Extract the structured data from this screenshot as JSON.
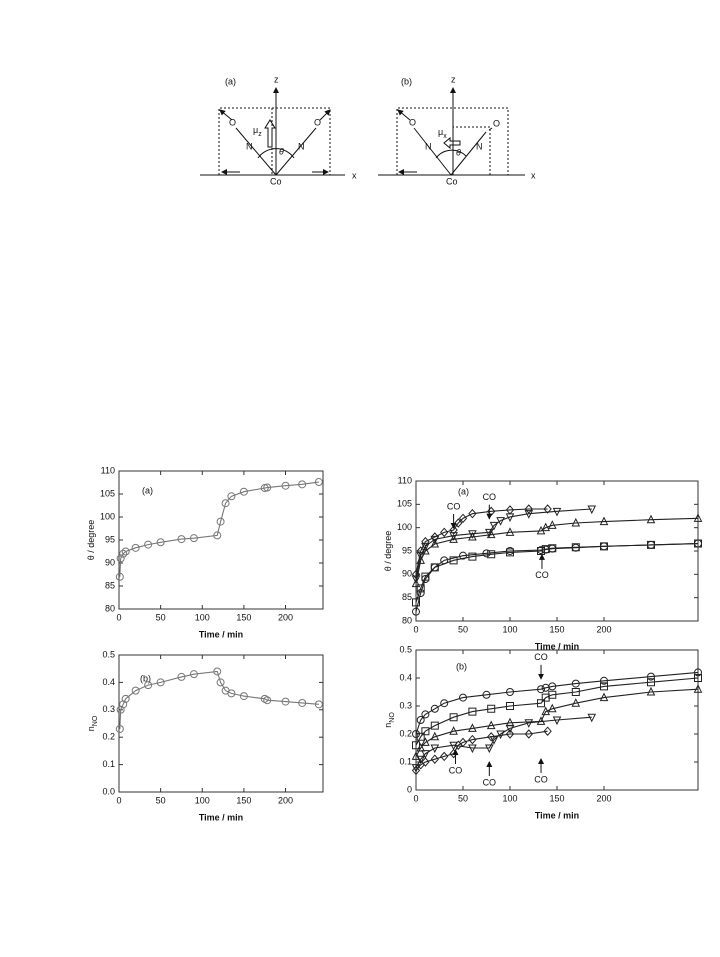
{
  "diagram": {
    "panels": [
      {
        "label": "(a)",
        "z": "z",
        "x": "x",
        "o_left": "O",
        "o_right": "O",
        "n_left": "N",
        "n_right": "N",
        "co": "Co",
        "mu": "μ",
        "mu_sub": "z",
        "theta": "θ"
      },
      {
        "label": "(b)",
        "z": "z",
        "x": "x",
        "o_left": "O",
        "o_right": "O",
        "n_left": "N",
        "n_right": "N",
        "co": "Co",
        "mu": "μ",
        "mu_sub": "x",
        "theta": "θ"
      }
    ]
  },
  "chart_data": [
    {
      "type": "line",
      "panel_label": "(a)",
      "ylabel": "θ / degree",
      "xlabel": "Time / min",
      "xlim": [
        0,
        245
      ],
      "xticks": [
        0,
        50,
        100,
        150,
        200
      ],
      "ylim": [
        80,
        110
      ],
      "yticks": [
        80,
        85,
        90,
        95,
        100,
        105,
        110
      ],
      "series": [
        {
          "color": "#777777",
          "marker": "circle",
          "x": [
            1,
            2,
            5,
            8,
            20,
            35,
            50,
            75,
            90,
            118,
            122,
            128,
            135,
            150,
            175,
            178,
            200,
            220,
            240
          ],
          "values": [
            87,
            91,
            92,
            92.5,
            93.3,
            94,
            94.5,
            95.2,
            95.4,
            96,
            99,
            103,
            104.5,
            105.5,
            106.3,
            106.4,
            106.8,
            107.1,
            107.6
          ]
        }
      ],
      "annotations": []
    },
    {
      "type": "line",
      "panel_label": "(b)",
      "ylabel": "n",
      "ylabel_sub": "NO",
      "xlabel": "Time / min",
      "xlim": [
        0,
        245
      ],
      "xticks": [
        0,
        50,
        100,
        150,
        200
      ],
      "ylim": [
        0,
        0.5
      ],
      "yticks": [
        {
          "value": 0,
          "label": "0.0"
        },
        0.1,
        0.2,
        0.3,
        0.4,
        0.5
      ],
      "series": [
        {
          "color": "#777777",
          "marker": "circle",
          "x": [
            1,
            2,
            5,
            8,
            20,
            35,
            50,
            75,
            90,
            118,
            122,
            128,
            135,
            150,
            175,
            178,
            200,
            220,
            240
          ],
          "values": [
            0.23,
            0.3,
            0.32,
            0.34,
            0.37,
            0.39,
            0.4,
            0.42,
            0.43,
            0.44,
            0.4,
            0.37,
            0.36,
            0.35,
            0.34,
            0.335,
            0.33,
            0.325,
            0.32
          ]
        }
      ],
      "annotations": []
    },
    {
      "type": "line",
      "panel_label": "(a)",
      "ylabel": "θ / degree",
      "xlabel": "Time / min",
      "xlim": [
        0,
        300
      ],
      "xticks": [
        0,
        50,
        100,
        150,
        200
      ],
      "ylim": [
        80,
        110
      ],
      "yticks": [
        80,
        85,
        90,
        95,
        100,
        105,
        110
      ],
      "series": [
        {
          "color": "#222222",
          "marker": "diamond",
          "x": [
            0,
            5,
            10,
            20,
            30,
            40,
            45,
            50,
            60,
            80,
            100,
            120,
            140
          ],
          "values": [
            90,
            95,
            97,
            98,
            99,
            99.5,
            101,
            102,
            103,
            103.5,
            103.8,
            104,
            104
          ]
        },
        {
          "color": "#222222",
          "marker": "tri-down",
          "x": [
            0,
            5,
            10,
            20,
            40,
            60,
            78,
            83,
            90,
            100,
            120,
            150,
            187
          ],
          "values": [
            89,
            94,
            96,
            97.5,
            98.3,
            98.7,
            99,
            100.5,
            101.5,
            102.3,
            103,
            103.5,
            104
          ]
        },
        {
          "color": "#222222",
          "marker": "tri-up",
          "x": [
            0,
            5,
            10,
            20,
            40,
            60,
            80,
            100,
            133,
            138,
            145,
            170,
            200,
            250,
            300
          ],
          "values": [
            88,
            93,
            95,
            96.5,
            97.5,
            98,
            98.5,
            99,
            99.3,
            100,
            100.5,
            101,
            101.3,
            101.7,
            102
          ]
        },
        {
          "color": "#222222",
          "marker": "circle",
          "x": [
            0,
            5,
            10,
            20,
            30,
            50,
            75,
            100,
            133,
            138,
            145,
            170,
            200,
            250,
            300
          ],
          "values": [
            82,
            86,
            89,
            91.5,
            93,
            94,
            94.5,
            95,
            95.2,
            95.3,
            95.5,
            95.7,
            96,
            96.3,
            96.6
          ]
        },
        {
          "color": "#222222",
          "marker": "square",
          "x": [
            0,
            5,
            10,
            20,
            40,
            60,
            80,
            100,
            133,
            138,
            145,
            170,
            200,
            250,
            300
          ],
          "values": [
            84,
            87,
            89.5,
            91.5,
            93,
            93.8,
            94.3,
            94.7,
            95,
            95.4,
            95.6,
            95.8,
            96,
            96.3,
            96.6
          ]
        }
      ],
      "annotations": [
        {
          "text": "CO",
          "x": 40,
          "y": 99.5,
          "arrow": "down"
        },
        {
          "text": "CO",
          "x": 78,
          "y": 101.5,
          "arrow": "down"
        },
        {
          "text": "CO",
          "x": 134,
          "y": 94.6,
          "arrow": "up"
        }
      ]
    },
    {
      "type": "line",
      "panel_label": "(b)",
      "ylabel": "n",
      "ylabel_sub": "NO",
      "xlabel": "Time / min",
      "xlim": [
        0,
        300
      ],
      "xticks": [
        0,
        50,
        100,
        150,
        200
      ],
      "ylim": [
        0,
        0.5
      ],
      "yticks": [
        0,
        0.1,
        0.2,
        0.3,
        0.4,
        0.5
      ],
      "series": [
        {
          "color": "#222222",
          "marker": "circle",
          "x": [
            0,
            5,
            10,
            20,
            30,
            50,
            75,
            100,
            133,
            138,
            145,
            170,
            200,
            250,
            300
          ],
          "values": [
            0.2,
            0.25,
            0.27,
            0.29,
            0.31,
            0.33,
            0.34,
            0.35,
            0.36,
            0.365,
            0.37,
            0.38,
            0.39,
            0.405,
            0.42
          ]
        },
        {
          "color": "#222222",
          "marker": "square",
          "x": [
            0,
            5,
            10,
            20,
            40,
            60,
            80,
            100,
            133,
            138,
            145,
            170,
            200,
            250,
            300
          ],
          "values": [
            0.16,
            0.19,
            0.21,
            0.23,
            0.26,
            0.28,
            0.29,
            0.3,
            0.31,
            0.33,
            0.34,
            0.35,
            0.37,
            0.385,
            0.4
          ]
        },
        {
          "color": "#222222",
          "marker": "tri-up",
          "x": [
            0,
            5,
            10,
            20,
            40,
            60,
            80,
            100,
            133,
            138,
            145,
            170,
            200,
            250,
            300
          ],
          "values": [
            0.12,
            0.15,
            0.17,
            0.19,
            0.21,
            0.22,
            0.23,
            0.24,
            0.245,
            0.28,
            0.29,
            0.31,
            0.33,
            0.35,
            0.36
          ]
        },
        {
          "color": "#222222",
          "marker": "tri-down",
          "x": [
            0,
            5,
            10,
            20,
            40,
            60,
            78,
            83,
            90,
            100,
            120,
            150,
            187
          ],
          "values": [
            0.08,
            0.11,
            0.13,
            0.15,
            0.16,
            0.15,
            0.15,
            0.18,
            0.2,
            0.22,
            0.24,
            0.25,
            0.26
          ]
        },
        {
          "color": "#222222",
          "marker": "diamond",
          "x": [
            0,
            5,
            10,
            20,
            30,
            40,
            45,
            50,
            60,
            80,
            100,
            120,
            140
          ],
          "values": [
            0.07,
            0.09,
            0.1,
            0.11,
            0.12,
            0.13,
            0.16,
            0.17,
            0.18,
            0.19,
            0.2,
            0.2,
            0.21
          ]
        }
      ],
      "annotations": [
        {
          "text": "CO",
          "x": 133,
          "y": 0.39,
          "arrow": "down"
        },
        {
          "text": "CO",
          "x": 42,
          "y": 0.15,
          "arrow": "up"
        },
        {
          "text": "CO",
          "x": 78,
          "y": 0.107,
          "arrow": "up"
        },
        {
          "text": "CO",
          "x": 133,
          "y": 0.118,
          "arrow": "up"
        }
      ]
    }
  ]
}
